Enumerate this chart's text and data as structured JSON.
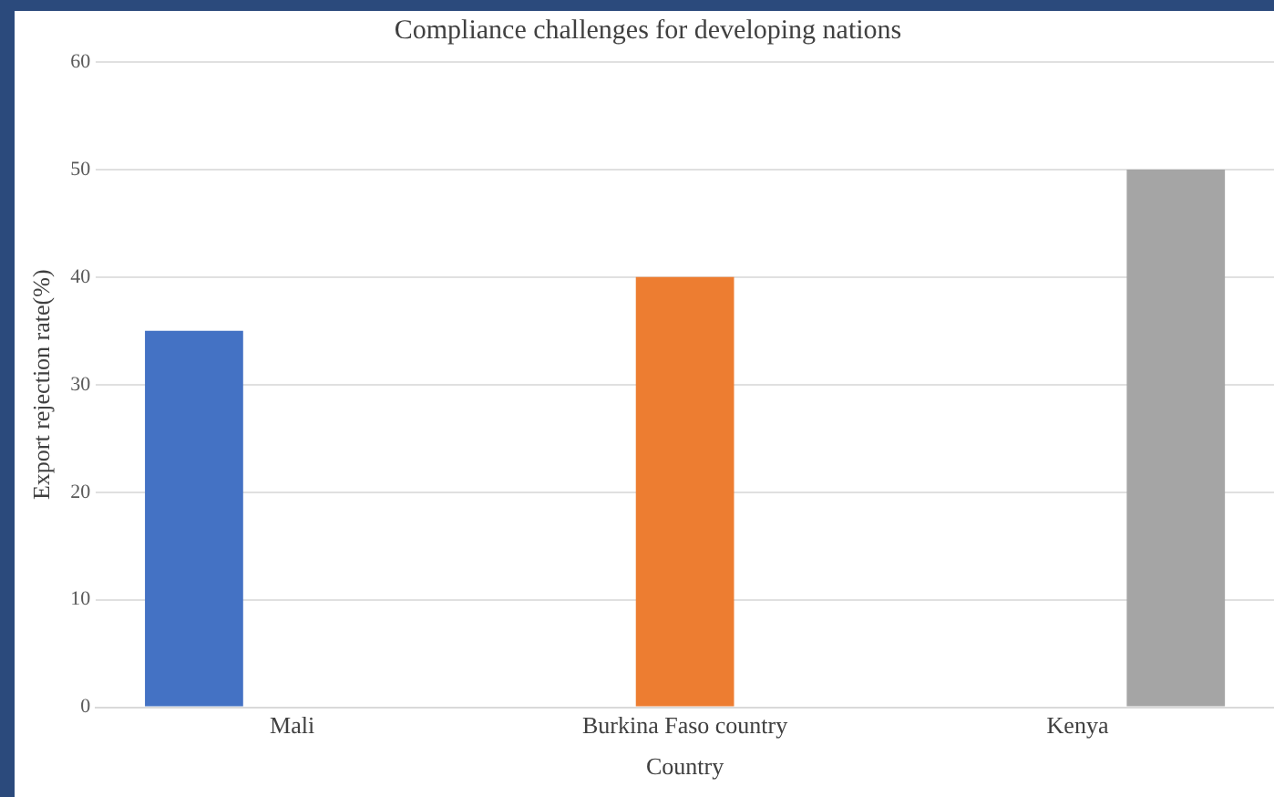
{
  "chart_data": {
    "type": "bar",
    "title": "Compliance challenges for developing nations",
    "xlabel": "Country",
    "ylabel": "Export rejection rate(%)",
    "categories": [
      "Mali",
      "Burkina Faso country",
      "Kenya"
    ],
    "series": [
      {
        "color": "#4472c4",
        "values": [
          35,
          null,
          null
        ]
      },
      {
        "color": "#ed7d31",
        "values": [
          null,
          40,
          null
        ]
      },
      {
        "color": "#a5a5a5",
        "values": [
          null,
          null,
          50
        ]
      }
    ],
    "ylim": [
      0,
      60
    ],
    "yticks": [
      0,
      10,
      20,
      30,
      40,
      50,
      60
    ],
    "grid": "y",
    "legend": false
  }
}
